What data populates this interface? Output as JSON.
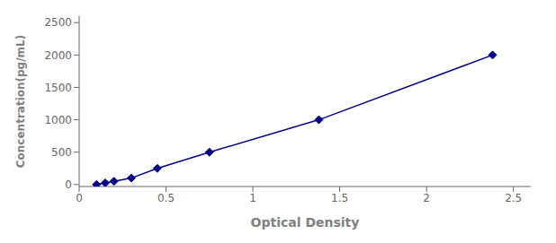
{
  "chart_data": {
    "type": "line",
    "x": [
      0.1,
      0.15,
      0.2,
      0.3,
      0.45,
      0.75,
      1.38,
      2.38
    ],
    "values": [
      0,
      25,
      50,
      100,
      250,
      500,
      1000,
      2000
    ],
    "color": "#00008B",
    "marker": "diamond",
    "xlabel": "Optical Density",
    "ylabel": "Concentration(pg/mL)",
    "xlim": [
      0.0,
      2.6
    ],
    "ylim": [
      -30,
      2600
    ],
    "xticks": [
      0,
      0.5,
      1,
      1.5,
      2,
      2.5
    ],
    "yticks": [
      0,
      500,
      1000,
      1500,
      2000,
      2500
    ],
    "grid": false
  }
}
